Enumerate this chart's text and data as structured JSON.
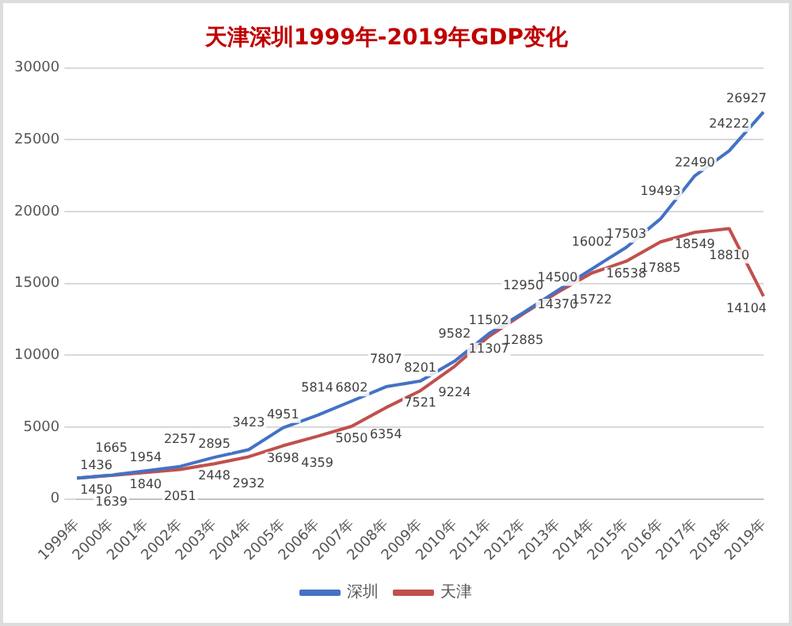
{
  "chart_data": {
    "type": "line",
    "title": "天津深圳1999年-2019年GDP变化",
    "categories": [
      "1999年",
      "2000年",
      "2001年",
      "2002年",
      "2003年",
      "2004年",
      "2005年",
      "2006年",
      "2007年",
      "2008年",
      "2009年",
      "2010年",
      "2011年",
      "2012年",
      "2013年",
      "2014年",
      "2015年",
      "2016年",
      "2017年",
      "2018年",
      "2019年"
    ],
    "series": [
      {
        "name": "深圳",
        "color": "#4472c4",
        "values": [
          1436,
          1665,
          1954,
          2257,
          2895,
          3423,
          4951,
          5814,
          6802,
          7807,
          8201,
          9582,
          11502,
          12950,
          14500,
          16002,
          17503,
          19493,
          22490,
          24222,
          26927
        ]
      },
      {
        "name": "天津",
        "color": "#c0504d",
        "values": [
          1450,
          1639,
          1840,
          2051,
          2448,
          2932,
          3698,
          4359,
          5050,
          6354,
          7521,
          9224,
          11307,
          12885,
          14370,
          15722,
          16538,
          17885,
          18549,
          18810,
          14104
        ]
      }
    ],
    "ylim": [
      0,
      30000
    ],
    "yticks": [
      0,
      5000,
      10000,
      15000,
      20000,
      25000,
      30000
    ],
    "grid": "y",
    "legend": "bottom",
    "data_labels": true,
    "marker": "none",
    "line_style": "solid"
  }
}
